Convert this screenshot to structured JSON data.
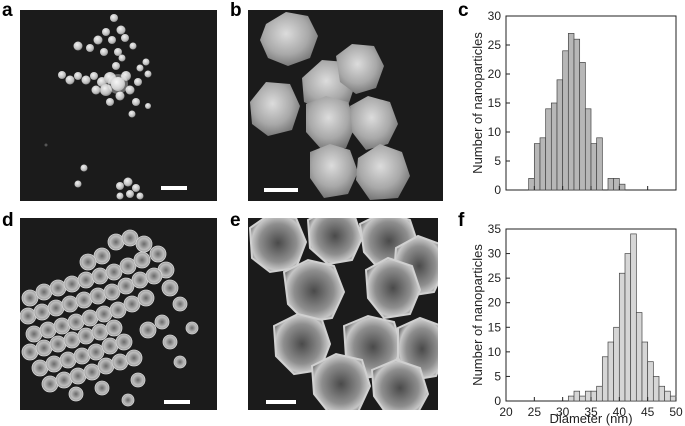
{
  "figure": {
    "panels": [
      {
        "letter": "a"
      },
      {
        "letter": "b"
      },
      {
        "letter": "c"
      },
      {
        "letter": "d"
      },
      {
        "letter": "e"
      },
      {
        "letter": "f"
      }
    ]
  },
  "chart_data": [
    {
      "panel": "c",
      "type": "bar",
      "ylabel": "Number of nanoparticles",
      "xlabel": "",
      "xlim": [
        20,
        50
      ],
      "ylim": [
        0,
        30
      ],
      "yticks": [
        0,
        5,
        10,
        15,
        20,
        25,
        30
      ],
      "xticks_labeled": false,
      "bin_width": 1,
      "bins": [
        {
          "x": 24,
          "count": 2
        },
        {
          "x": 25,
          "count": 8
        },
        {
          "x": 26,
          "count": 9
        },
        {
          "x": 27,
          "count": 14
        },
        {
          "x": 28,
          "count": 15
        },
        {
          "x": 29,
          "count": 19
        },
        {
          "x": 30,
          "count": 24
        },
        {
          "x": 31,
          "count": 27
        },
        {
          "x": 32,
          "count": 26
        },
        {
          "x": 33,
          "count": 22
        },
        {
          "x": 34,
          "count": 14
        },
        {
          "x": 35,
          "count": 8
        },
        {
          "x": 36,
          "count": 9
        },
        {
          "x": 38,
          "count": 2
        },
        {
          "x": 39,
          "count": 2
        },
        {
          "x": 40,
          "count": 1
        }
      ],
      "fill": "#b7b7b7"
    },
    {
      "panel": "f",
      "type": "bar",
      "ylabel": "Number of nanoparticles",
      "xlabel": "Diameter (nm)",
      "xlim": [
        20,
        50
      ],
      "ylim": [
        0,
        35
      ],
      "yticks": [
        0,
        5,
        10,
        15,
        20,
        25,
        30,
        35
      ],
      "xticks": [
        20,
        25,
        30,
        35,
        40,
        45,
        50
      ],
      "bin_width": 1,
      "bins": [
        {
          "x": 31,
          "count": 1
        },
        {
          "x": 32,
          "count": 2
        },
        {
          "x": 33,
          "count": 1
        },
        {
          "x": 34,
          "count": 2
        },
        {
          "x": 35,
          "count": 2
        },
        {
          "x": 36,
          "count": 3
        },
        {
          "x": 37,
          "count": 9
        },
        {
          "x": 38,
          "count": 12
        },
        {
          "x": 39,
          "count": 15
        },
        {
          "x": 40,
          "count": 26
        },
        {
          "x": 41,
          "count": 30
        },
        {
          "x": 42,
          "count": 34
        },
        {
          "x": 43,
          "count": 18
        },
        {
          "x": 44,
          "count": 12
        },
        {
          "x": 45,
          "count": 8
        },
        {
          "x": 46,
          "count": 5
        },
        {
          "x": 47,
          "count": 3
        },
        {
          "x": 48,
          "count": 2
        },
        {
          "x": 49,
          "count": 1
        }
      ],
      "fill": "#d6d6d6"
    }
  ]
}
